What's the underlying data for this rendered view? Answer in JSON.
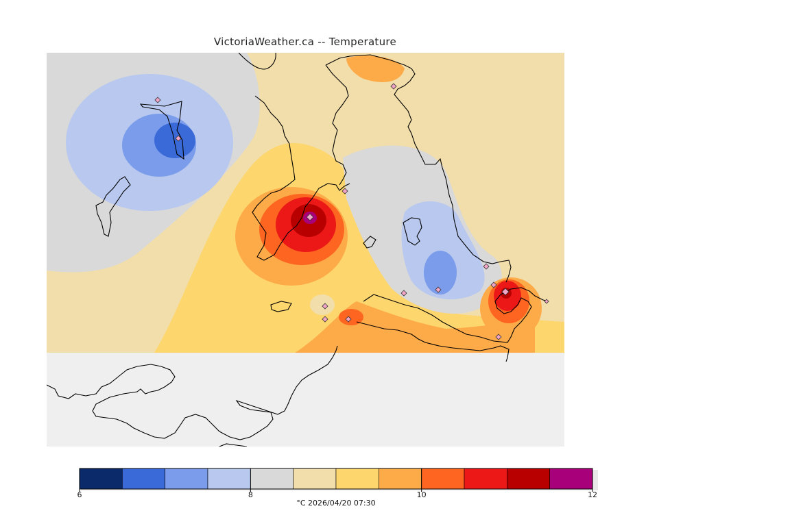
{
  "title": "VictoriaWeather.ca -- Temperature",
  "legend": {
    "colors": [
      "#0a2a6a",
      "#3a6ad8",
      "#7a9ceb",
      "#b8c8ef",
      "#d9d9d9",
      "#f2deaa",
      "#fed66e",
      "#fdaa48",
      "#fd6520",
      "#ec1818",
      "#b80000",
      "#a8007a"
    ],
    "tick_labels": [
      "6",
      "8",
      "10",
      "12"
    ],
    "caption": "°C  2026/04/20 07:30"
  },
  "map": {
    "background_color": "#efefef",
    "land_outline_color": "#000000",
    "station_marker": "diamond"
  }
}
